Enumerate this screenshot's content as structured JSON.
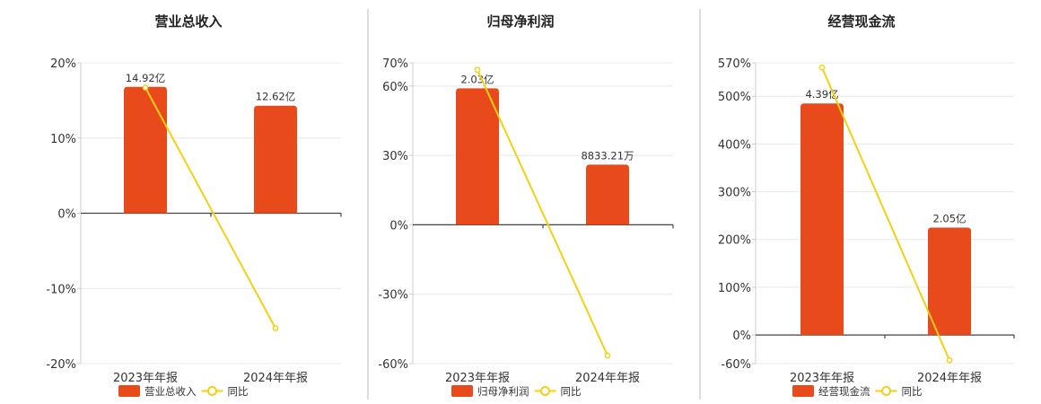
{
  "colors": {
    "bar": "#e84a1c",
    "line": "#f2d114"
  },
  "chart_data": [
    {
      "type": "bar",
      "title": "营业总收入",
      "categories": [
        "2023年年报",
        "2024年年报"
      ],
      "series": [
        {
          "name": "营业总收入",
          "type": "bar",
          "axis": "y",
          "values": [
            16.8,
            14.3
          ],
          "labels": [
            "14.92亿",
            "12.62亿"
          ]
        },
        {
          "name": "同比",
          "type": "line",
          "axis": "y",
          "values": [
            16.7,
            -15.3
          ]
        }
      ],
      "yticks": [
        "20%",
        "10%",
        "0%",
        "-10%",
        "-20%"
      ],
      "ylim": [
        -20,
        20
      ],
      "grid": true,
      "legend": "bottom"
    },
    {
      "type": "bar",
      "title": "归母净利润",
      "categories": [
        "2023年年报",
        "2024年年报"
      ],
      "series": [
        {
          "name": "归母净利润",
          "type": "bar",
          "axis": "y",
          "values": [
            59,
            26
          ],
          "labels": [
            "2.03亿",
            "8833.21万"
          ]
        },
        {
          "name": "同比",
          "type": "line",
          "axis": "y",
          "values": [
            67,
            -56.5
          ]
        }
      ],
      "yticks": [
        "70%",
        "60%",
        "30%",
        "0%",
        "-30%",
        "-60%"
      ],
      "ylim": [
        -60,
        70
      ],
      "grid": true,
      "legend": "bottom"
    },
    {
      "type": "bar",
      "title": "经营现金流",
      "categories": [
        "2023年年报",
        "2024年年报"
      ],
      "series": [
        {
          "name": "经营现金流",
          "type": "bar",
          "axis": "y",
          "values": [
            485,
            225
          ],
          "labels": [
            "4.39亿",
            "2.05亿"
          ]
        },
        {
          "name": "同比",
          "type": "line",
          "axis": "y",
          "values": [
            560,
            -53
          ]
        }
      ],
      "yticks": [
        "570%",
        "500%",
        "400%",
        "300%",
        "200%",
        "100%",
        "0%",
        "-60%"
      ],
      "ylim": [
        -60,
        570
      ],
      "grid": true,
      "legend": "bottom"
    }
  ]
}
